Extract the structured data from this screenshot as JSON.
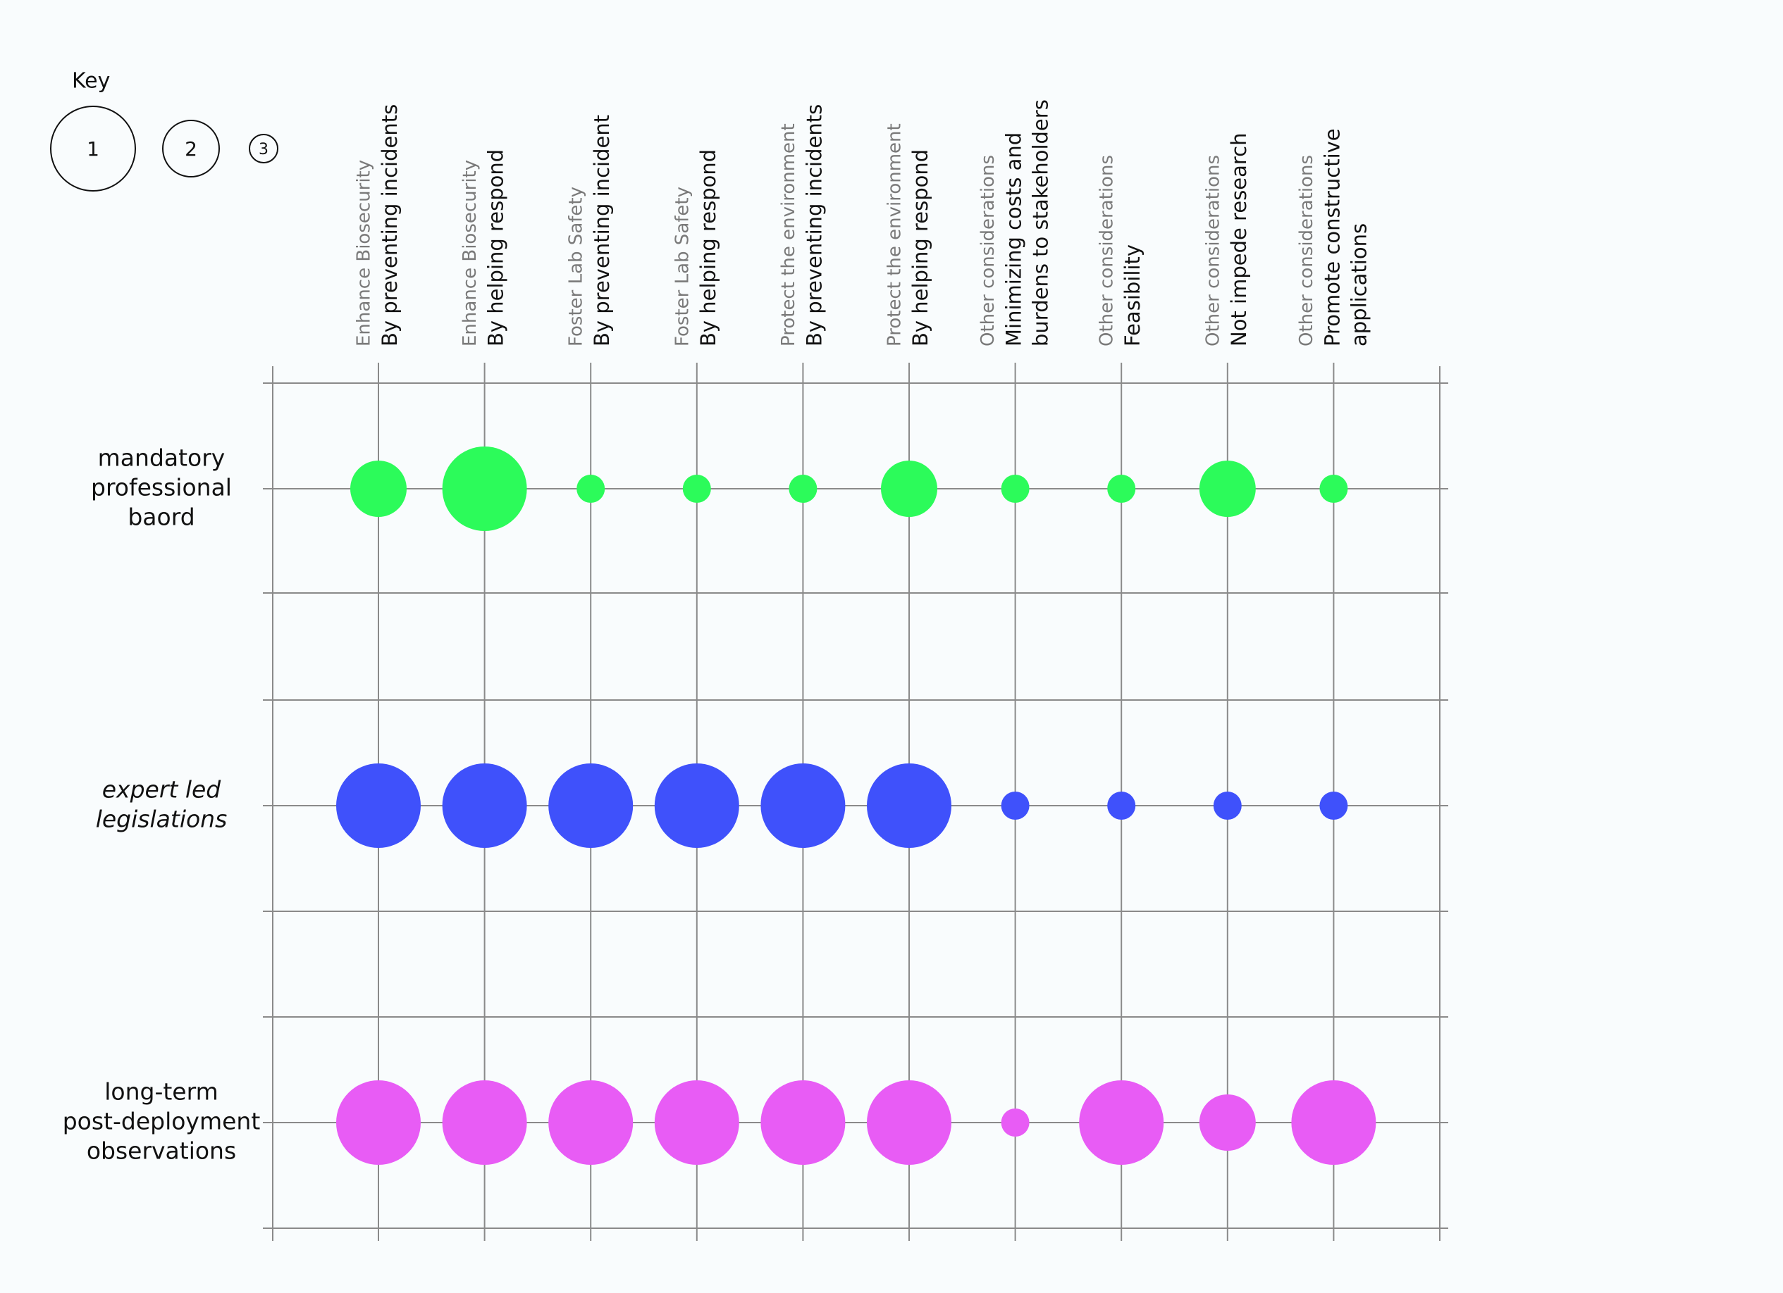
{
  "key": {
    "title": "Key",
    "levels": [
      1,
      2,
      3
    ]
  },
  "columns": [
    {
      "category": "Enhance Biosecurity",
      "sub": [
        "By preventing incidents"
      ]
    },
    {
      "category": "Enhance Biosecurity",
      "sub": [
        "By helping respond"
      ]
    },
    {
      "category": "Foster Lab Safety",
      "sub": [
        "By preventing incident"
      ]
    },
    {
      "category": "Foster Lab Safety",
      "sub": [
        "By helping respond"
      ]
    },
    {
      "category": "Protect the environment",
      "sub": [
        "By preventing incidents"
      ]
    },
    {
      "category": "Protect the environment",
      "sub": [
        "By helping respond"
      ]
    },
    {
      "category": "Other considerations",
      "sub": [
        "Minimizing costs and",
        "burdens to stakeholders"
      ]
    },
    {
      "category": "Other considerations",
      "sub": [
        "Feasibility"
      ]
    },
    {
      "category": "Other considerations",
      "sub": [
        "Not impede research"
      ]
    },
    {
      "category": "Other considerations",
      "sub": [
        "Promote constructive",
        "applications"
      ]
    }
  ],
  "rows": [
    {
      "label": [
        "mandatory",
        "professional",
        "baord"
      ],
      "color": "#2cfb5a",
      "values": [
        2,
        1,
        3,
        3,
        3,
        2,
        3,
        3,
        2,
        3
      ]
    },
    {
      "label": [
        "expert led",
        "legislations"
      ],
      "color": "#3f51fb",
      "values": [
        1,
        1,
        1,
        1,
        1,
        1,
        3,
        3,
        3,
        3
      ]
    },
    {
      "label": [
        "long-term",
        "post-deployment",
        "observations"
      ],
      "color": "#e85cf5",
      "values": [
        1,
        1,
        1,
        1,
        1,
        1,
        3,
        1,
        2,
        1
      ]
    }
  ]
}
